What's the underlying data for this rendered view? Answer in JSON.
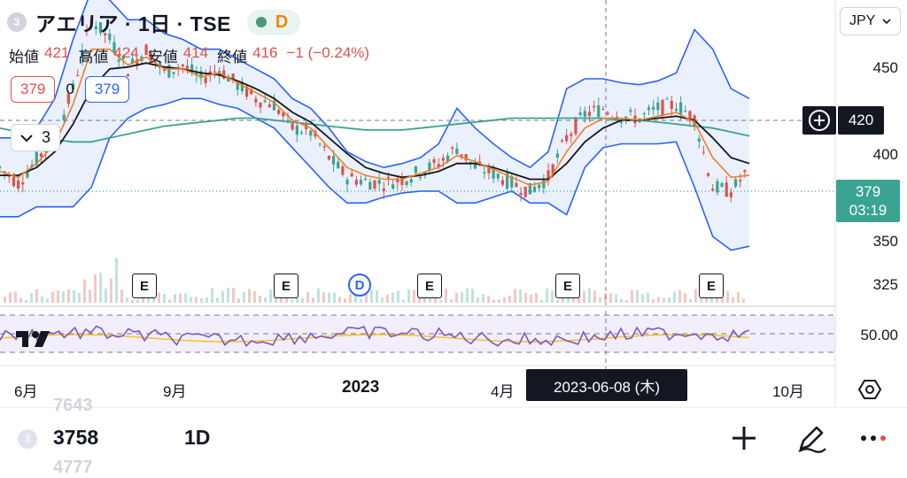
{
  "header": {
    "symbol_badge": "3",
    "title": "アエリア · 1日 · TSE",
    "status_letter": "D",
    "currency": "JPY",
    "ohlc": {
      "open_label": "始値",
      "open": "421",
      "high_label": "高値",
      "high": "424",
      "low_label": "安値",
      "low": "414",
      "close_label": "終値",
      "close": "416",
      "change": "−1 (−0.24%)"
    },
    "indicator_left": "379",
    "indicator_zero": "0",
    "indicator_right": "379",
    "collapse_count": "3"
  },
  "price_axis": {
    "labels": [
      "450",
      "400",
      "350",
      "325"
    ],
    "hover_price": "420",
    "last_price": "379",
    "countdown": "03:19",
    "rsi_level": "50.00"
  },
  "time_axis": {
    "labels": [
      "6月",
      "9月",
      "2023",
      "4月",
      "10月"
    ],
    "crosshair_date": "2023-06-08 (木)"
  },
  "events": {
    "earnings_letter": "E",
    "dividend_letter": "D"
  },
  "bottom_bar": {
    "badge": "3",
    "code": "3758",
    "interval": "1D",
    "ghost_top": "7643",
    "ghost_bottom": "4777"
  },
  "colors": {
    "up": "#3aa391",
    "down": "#e0504a",
    "bollinger": "#2962ff",
    "bollinger_fill": "#e8eefb",
    "ma_short": "#e0504a",
    "ma_mid": "#f07f22",
    "ma_long": "#131722",
    "ma_200": "#3aa391",
    "rsi_line": "#7e57c2",
    "rsi_ma": "#f0c419",
    "rsi_bg": "#f3eefb"
  },
  "chart_data": {
    "type": "line",
    "title": "",
    "xlabel": "",
    "ylabel": "",
    "ylim": [
      310,
      465
    ],
    "x_ticks": [
      "6月",
      "9月",
      "2023",
      "4月",
      "10月"
    ],
    "series": [
      {
        "values": [
          380,
          372,
          384,
          395,
          420,
          455,
          445,
          430,
          440,
          428,
          432,
          425,
          430,
          422,
          415,
          412,
          400,
          398,
          385,
          375,
          373,
          372,
          374,
          378,
          382,
          390,
          380,
          377,
          372,
          368,
          375,
          395,
          407,
          410,
          406,
          405,
          410,
          412,
          405,
          370,
          368,
          379
        ]
      },
      {
        "values": [
          378,
          375,
          382,
          392,
          412,
          440,
          440,
          432,
          436,
          430,
          430,
          426,
          428,
          423,
          418,
          413,
          404,
          400,
          390,
          380,
          376,
          374,
          374,
          377,
          380,
          386,
          383,
          379,
          375,
          371,
          373,
          388,
          400,
          405,
          405,
          404,
          406,
          408,
          403,
          385,
          375,
          376
        ]
      },
      {
        "values": [
          376,
          376,
          380,
          388,
          402,
          420,
          430,
          431,
          433,
          431,
          430,
          428,
          427,
          424,
          420,
          415,
          408,
          403,
          395,
          387,
          380,
          377,
          375,
          376,
          378,
          382,
          382,
          380,
          377,
          374,
          374,
          382,
          393,
          400,
          404,
          404,
          405,
          406,
          404,
          395,
          385,
          382
        ]
      },
      {
        "values": [
          400,
          398,
          396,
          394,
          393,
          393,
          395,
          397,
          399,
          401,
          402,
          403,
          404,
          405,
          405,
          404,
          403,
          402,
          401,
          400,
          399,
          399,
          399,
          400,
          401,
          402,
          403,
          404,
          405,
          405,
          405,
          405,
          405,
          405,
          404,
          404,
          403,
          402,
          401,
          400,
          398,
          396
        ]
      },
      {
        "values": [
          395,
          395,
          400,
          415,
          445,
          470,
          465,
          455,
          455,
          448,
          445,
          440,
          440,
          435,
          430,
          425,
          415,
          410,
          400,
          388,
          383,
          380,
          382,
          385,
          392,
          410,
          400,
          392,
          385,
          380,
          388,
          420,
          425,
          425,
          423,
          422,
          424,
          428,
          450,
          440,
          420,
          415
        ]
      },
      {
        "values": [
          355,
          355,
          360,
          360,
          360,
          370,
          395,
          405,
          410,
          412,
          415,
          415,
          412,
          410,
          405,
          400,
          390,
          380,
          370,
          362,
          362,
          365,
          367,
          368,
          368,
          362,
          362,
          365,
          368,
          362,
          362,
          356,
          380,
          390,
          392,
          392,
          392,
          393,
          370,
          345,
          338,
          340
        ]
      }
    ]
  }
}
